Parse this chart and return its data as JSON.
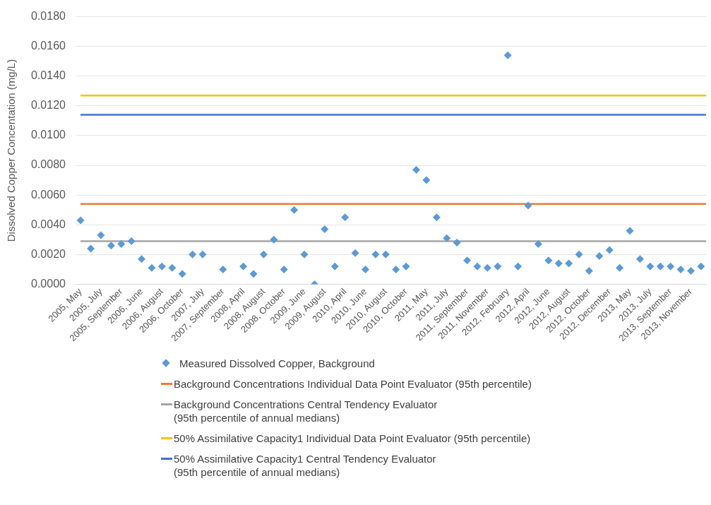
{
  "chart_data": {
    "type": "scatter",
    "ylabel": "Dissolved Copper Concentation (mg/L)",
    "categories": [
      "2005, May",
      null,
      "2005, July",
      null,
      "2005, September",
      null,
      "2006, June",
      null,
      "2006, August",
      null,
      "2006, October",
      null,
      "2007, July",
      null,
      "2007, September",
      null,
      "2008, April",
      null,
      "2008, August",
      null,
      "2008, October",
      null,
      "2009, June",
      null,
      "2009, August",
      null,
      "2010, April",
      null,
      "2010, June",
      null,
      "2010, August",
      null,
      "2010, October",
      null,
      "2011, May",
      null,
      "2011, July",
      null,
      "2011, September",
      null,
      "2011, November",
      null,
      "2012, February",
      null,
      "2012, April",
      null,
      "2012, June",
      null,
      "2012, August",
      null,
      "2012, October",
      null,
      "2012, December",
      null,
      "2013, May",
      null,
      "2013, July",
      null,
      "2013, September",
      null,
      "2013, November",
      null
    ],
    "series": [
      {
        "name": "Measured Dissolved Copper, Background",
        "color": "#5b9bd5",
        "values": [
          0.0043,
          0.0024,
          0.0033,
          0.0026,
          0.0027,
          0.0029,
          0.0017,
          0.0011,
          0.0012,
          0.0011,
          0.0007,
          0.002,
          0.002,
          null,
          0.001,
          null,
          0.0012,
          0.0007,
          0.002,
          0.003,
          0.001,
          0.005,
          0.002,
          0.0,
          0.0037,
          0.0012,
          0.0045,
          0.0021,
          0.001,
          0.002,
          0.002,
          0.001,
          0.0012,
          0.0077,
          0.007,
          0.0045,
          0.0031,
          0.0028,
          0.0016,
          0.0012,
          0.0011,
          0.0012,
          0.0154,
          0.0012,
          0.0053,
          0.0027,
          0.0016,
          0.0014,
          0.0014,
          0.002,
          0.0009,
          0.0019,
          0.0023,
          0.0011,
          0.0036,
          0.0017,
          0.0012,
          0.0012,
          0.0012,
          0.001,
          0.0009,
          0.0012
        ]
      }
    ],
    "ref_lines": [
      {
        "axis": "y",
        "value": 0.0054,
        "label": "Background Concentrations Individual Data Point Evaluator (95th percentile)",
        "color": "#ed7d31"
      },
      {
        "axis": "y",
        "value": 0.0029,
        "label": "Background Concentrations Central Tendency Evaluator\n(95th percentile of annual medians)",
        "color": "#a5a5a5"
      },
      {
        "axis": "y",
        "value": 0.0127,
        "label": "50% Assimilative Capacity1 Individual Data Point Evaluator (95th percentile)",
        "color": "#ffc000"
      },
      {
        "axis": "y",
        "value": 0.0114,
        "label": "50% Assimilative Capacity1 Central Tendency Evaluator\n(95th percentile of annual medians)",
        "color": "#4472c4"
      }
    ],
    "ylim": [
      0,
      0.018
    ],
    "yticks": [
      {
        "value": 0,
        "label": "0.0000"
      },
      {
        "value": 0.002,
        "label": "0.0020"
      },
      {
        "value": 0.004,
        "label": "0.0040"
      },
      {
        "value": 0.006,
        "label": "0.0060"
      },
      {
        "value": 0.008,
        "label": "0.0080"
      },
      {
        "value": 0.01,
        "label": "0.0100"
      },
      {
        "value": 0.012,
        "label": "0.0120"
      },
      {
        "value": 0.014,
        "label": "0.0140"
      },
      {
        "value": 0.016,
        "label": "0.0160"
      },
      {
        "value": 0.018,
        "label": "0.0180"
      }
    ],
    "grid": "y",
    "legend": "bottom",
    "marker": "diamond"
  }
}
